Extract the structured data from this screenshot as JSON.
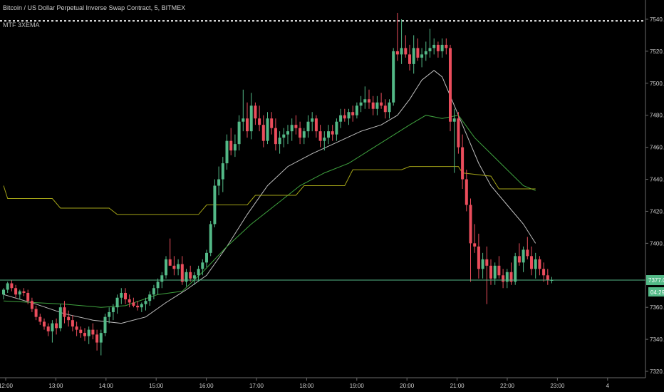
{
  "header": {
    "title": "Bitcoin / US Dollar Perpetual Inverse Swap Contract, 5, BITMEX",
    "indicator": "MTF 3XEMA"
  },
  "colors": {
    "background": "#000000",
    "up": "#53b987",
    "down": "#eb4d5c",
    "ema_fast": "#bfbfbf",
    "ema_mid": "#3fa33f",
    "ema_slow": "#a3a317",
    "price_line": "#53b987",
    "dotted_line": "#ffffff"
  },
  "chart_data": {
    "type": "candlestick",
    "symbol": "Bitcoin / US Dollar Perpetual Inverse Swap Contract",
    "interval": "5",
    "exchange": "BITMEX",
    "x_ticks": [
      "12:00",
      "13:00",
      "14:00",
      "15:00",
      "16:00",
      "17:00",
      "18:00",
      "19:00",
      "20:00",
      "21:00",
      "22:00",
      "23:00",
      "4"
    ],
    "y_ticks": [
      "7540.0",
      "7520.0",
      "7500.0",
      "7480.0",
      "7460.0",
      "7440.0",
      "7420.0",
      "7400.0",
      "7380.0",
      "7360.0",
      "7340.0",
      "7320.0"
    ],
    "ylim": [
      7316,
      7544
    ],
    "last_price": "7377.0",
    "countdown": "04:29",
    "dotted_level": 7539,
    "candles": [
      [
        7368,
        7372,
        7365,
        7371
      ],
      [
        7371,
        7376,
        7369,
        7375
      ],
      [
        7375,
        7377,
        7370,
        7372
      ],
      [
        7372,
        7374,
        7366,
        7368
      ],
      [
        7368,
        7371,
        7365,
        7370
      ],
      [
        7370,
        7372,
        7367,
        7369
      ],
      [
        7369,
        7371,
        7362,
        7364
      ],
      [
        7364,
        7366,
        7357,
        7359
      ],
      [
        7359,
        7361,
        7352,
        7354
      ],
      [
        7354,
        7356,
        7349,
        7351
      ],
      [
        7351,
        7353,
        7346,
        7348
      ],
      [
        7348,
        7350,
        7342,
        7345
      ],
      [
        7345,
        7352,
        7338,
        7350
      ],
      [
        7350,
        7353,
        7343,
        7347
      ],
      [
        7347,
        7362,
        7345,
        7360
      ],
      [
        7360,
        7364,
        7350,
        7354
      ],
      [
        7354,
        7358,
        7348,
        7352
      ],
      [
        7352,
        7355,
        7345,
        7348
      ],
      [
        7348,
        7351,
        7342,
        7346
      ],
      [
        7346,
        7348,
        7341,
        7344
      ],
      [
        7344,
        7347,
        7339,
        7342
      ],
      [
        7342,
        7348,
        7337,
        7346
      ],
      [
        7346,
        7350,
        7340,
        7343
      ],
      [
        7343,
        7346,
        7333,
        7338
      ],
      [
        7338,
        7346,
        7330,
        7344
      ],
      [
        7344,
        7356,
        7342,
        7354
      ],
      [
        7354,
        7360,
        7350,
        7357
      ],
      [
        7357,
        7362,
        7352,
        7360
      ],
      [
        7360,
        7368,
        7356,
        7366
      ],
      [
        7366,
        7372,
        7362,
        7369
      ],
      [
        7369,
        7372,
        7362,
        7365
      ],
      [
        7365,
        7368,
        7360,
        7363
      ],
      [
        7363,
        7366,
        7360,
        7361
      ],
      [
        7361,
        7364,
        7358,
        7360
      ],
      [
        7360,
        7363,
        7357,
        7362
      ],
      [
        7362,
        7366,
        7358,
        7364
      ],
      [
        7364,
        7370,
        7361,
        7368
      ],
      [
        7368,
        7374,
        7365,
        7372
      ],
      [
        7372,
        7378,
        7368,
        7376
      ],
      [
        7376,
        7382,
        7372,
        7380
      ],
      [
        7380,
        7392,
        7378,
        7390
      ],
      [
        7390,
        7403,
        7388,
        7386
      ],
      [
        7386,
        7392,
        7380,
        7384
      ],
      [
        7384,
        7390,
        7380,
        7387
      ],
      [
        7387,
        7392,
        7374,
        7376
      ],
      [
        7376,
        7384,
        7373,
        7382
      ],
      [
        7382,
        7386,
        7376,
        7378
      ],
      [
        7378,
        7382,
        7374,
        7380
      ],
      [
        7380,
        7386,
        7376,
        7384
      ],
      [
        7384,
        7390,
        7380,
        7388
      ],
      [
        7388,
        7396,
        7385,
        7394
      ],
      [
        7394,
        7414,
        7392,
        7412
      ],
      [
        7412,
        7440,
        7410,
        7436
      ],
      [
        7436,
        7448,
        7430,
        7440
      ],
      [
        7440,
        7454,
        7432,
        7450
      ],
      [
        7450,
        7468,
        7446,
        7464
      ],
      [
        7464,
        7472,
        7455,
        7458
      ],
      [
        7458,
        7468,
        7454,
        7462
      ],
      [
        7462,
        7480,
        7458,
        7476
      ],
      [
        7476,
        7496,
        7470,
        7478
      ],
      [
        7478,
        7488,
        7466,
        7470
      ],
      [
        7470,
        7494,
        7465,
        7486
      ],
      [
        7486,
        7488,
        7474,
        7478
      ],
      [
        7478,
        7486,
        7470,
        7474
      ],
      [
        7474,
        7480,
        7460,
        7464
      ],
      [
        7464,
        7482,
        7462,
        7478
      ],
      [
        7478,
        7482,
        7468,
        7472
      ],
      [
        7472,
        7478,
        7458,
        7462
      ],
      [
        7462,
        7470,
        7456,
        7466
      ],
      [
        7466,
        7472,
        7460,
        7468
      ],
      [
        7468,
        7474,
        7462,
        7470
      ],
      [
        7470,
        7478,
        7464,
        7474
      ],
      [
        7474,
        7480,
        7468,
        7472
      ],
      [
        7472,
        7476,
        7462,
        7466
      ],
      [
        7466,
        7472,
        7462,
        7470
      ],
      [
        7470,
        7480,
        7466,
        7476
      ],
      [
        7476,
        7482,
        7470,
        7478
      ],
      [
        7478,
        7480,
        7466,
        7470
      ],
      [
        7470,
        7474,
        7460,
        7464
      ],
      [
        7464,
        7470,
        7458,
        7466
      ],
      [
        7466,
        7474,
        7462,
        7470
      ],
      [
        7470,
        7474,
        7464,
        7468
      ],
      [
        7468,
        7478,
        7464,
        7476
      ],
      [
        7476,
        7484,
        7472,
        7480
      ],
      [
        7480,
        7484,
        7476,
        7478
      ],
      [
        7478,
        7484,
        7474,
        7482
      ],
      [
        7482,
        7486,
        7476,
        7480
      ],
      [
        7480,
        7488,
        7478,
        7486
      ],
      [
        7486,
        7492,
        7482,
        7488
      ],
      [
        7488,
        7498,
        7484,
        7490
      ],
      [
        7490,
        7496,
        7484,
        7488
      ],
      [
        7488,
        7492,
        7480,
        7484
      ],
      [
        7484,
        7492,
        7480,
        7488
      ],
      [
        7488,
        7494,
        7484,
        7486
      ],
      [
        7486,
        7490,
        7478,
        7482
      ],
      [
        7482,
        7490,
        7478,
        7488
      ],
      [
        7488,
        7522,
        7486,
        7520
      ],
      [
        7520,
        7544,
        7514,
        7518
      ],
      [
        7518,
        7540,
        7512,
        7522
      ],
      [
        7522,
        7530,
        7516,
        7518
      ],
      [
        7518,
        7524,
        7508,
        7512
      ],
      [
        7512,
        7530,
        7506,
        7522
      ],
      [
        7522,
        7528,
        7514,
        7516
      ],
      [
        7516,
        7522,
        7510,
        7518
      ],
      [
        7518,
        7526,
        7514,
        7520
      ],
      [
        7520,
        7534,
        7516,
        7522
      ],
      [
        7522,
        7528,
        7518,
        7524
      ],
      [
        7524,
        7526,
        7516,
        7520
      ],
      [
        7520,
        7528,
        7516,
        7524
      ],
      [
        7524,
        7528,
        7518,
        7522
      ],
      [
        7522,
        7524,
        7470,
        7476
      ],
      [
        7476,
        7484,
        7444,
        7478
      ],
      [
        7478,
        7482,
        7456,
        7460
      ],
      [
        7460,
        7468,
        7434,
        7440
      ],
      [
        7440,
        7446,
        7420,
        7424
      ],
      [
        7424,
        7428,
        7376,
        7400
      ],
      [
        7400,
        7412,
        7394,
        7398
      ],
      [
        7398,
        7406,
        7378,
        7384
      ],
      [
        7384,
        7394,
        7378,
        7390
      ],
      [
        7390,
        7398,
        7362,
        7386
      ],
      [
        7386,
        7390,
        7374,
        7378
      ],
      [
        7378,
        7388,
        7374,
        7386
      ],
      [
        7386,
        7392,
        7378,
        7380
      ],
      [
        7380,
        7384,
        7372,
        7376
      ],
      [
        7376,
        7384,
        7372,
        7382
      ],
      [
        7382,
        7388,
        7374,
        7376
      ],
      [
        7376,
        7394,
        7374,
        7392
      ],
      [
        7392,
        7400,
        7386,
        7388
      ],
      [
        7388,
        7398,
        7382,
        7396
      ],
      [
        7396,
        7404,
        7390,
        7392
      ],
      [
        7392,
        7398,
        7380,
        7384
      ],
      [
        7384,
        7394,
        7378,
        7390
      ],
      [
        7390,
        7392,
        7380,
        7384
      ],
      [
        7384,
        7388,
        7376,
        7380
      ],
      [
        7380,
        7384,
        7374,
        7377
      ],
      [
        7377,
        7379,
        7375,
        7377
      ]
    ],
    "series": [
      {
        "color": "#bfbfbf",
        "points": [
          [
            0,
            7368
          ],
          [
            8,
            7362
          ],
          [
            15,
            7356
          ],
          [
            22,
            7352
          ],
          [
            29,
            7350
          ],
          [
            35,
            7354
          ],
          [
            40,
            7363
          ],
          [
            45,
            7371
          ],
          [
            50,
            7380
          ],
          [
            55,
            7398
          ],
          [
            60,
            7418
          ],
          [
            65,
            7436
          ],
          [
            70,
            7448
          ],
          [
            76,
            7456
          ],
          [
            82,
            7463
          ],
          [
            88,
            7470
          ],
          [
            93,
            7474
          ],
          [
            97,
            7480
          ],
          [
            100,
            7490
          ],
          [
            103,
            7502
          ],
          [
            106,
            7508
          ],
          [
            108,
            7504
          ],
          [
            111,
            7486
          ],
          [
            114,
            7468
          ],
          [
            117,
            7450
          ],
          [
            120,
            7436
          ],
          [
            124,
            7424
          ],
          [
            128,
            7412
          ],
          [
            131,
            7400
          ]
        ]
      },
      {
        "color": "#3fa33f",
        "points": [
          [
            0,
            7364
          ],
          [
            15,
            7362
          ],
          [
            24,
            7360
          ],
          [
            30,
            7361
          ],
          [
            38,
            7368
          ],
          [
            44,
            7370
          ],
          [
            49,
            7382
          ],
          [
            55,
            7398
          ],
          [
            61,
            7412
          ],
          [
            67,
            7424
          ],
          [
            73,
            7436
          ],
          [
            79,
            7444
          ],
          [
            85,
            7450
          ],
          [
            90,
            7458
          ],
          [
            95,
            7466
          ],
          [
            100,
            7474
          ],
          [
            104,
            7480
          ],
          [
            108,
            7478
          ],
          [
            112,
            7480
          ],
          [
            116,
            7466
          ],
          [
            120,
            7456
          ],
          [
            124,
            7446
          ],
          [
            128,
            7436
          ],
          [
            131,
            7433
          ]
        ]
      },
      {
        "color": "#a3a317",
        "points": [
          [
            0,
            7436
          ],
          [
            1,
            7428
          ],
          [
            12,
            7428
          ],
          [
            14,
            7422
          ],
          [
            26,
            7422
          ],
          [
            28,
            7418
          ],
          [
            48,
            7418
          ],
          [
            50,
            7424
          ],
          [
            60,
            7424
          ],
          [
            62,
            7430
          ],
          [
            72,
            7430
          ],
          [
            74,
            7436
          ],
          [
            84,
            7436
          ],
          [
            86,
            7446
          ],
          [
            98,
            7446
          ],
          [
            100,
            7448
          ],
          [
            112,
            7448
          ],
          [
            113,
            7444
          ],
          [
            120,
            7442
          ],
          [
            122,
            7434
          ],
          [
            131,
            7434
          ]
        ]
      }
    ]
  }
}
